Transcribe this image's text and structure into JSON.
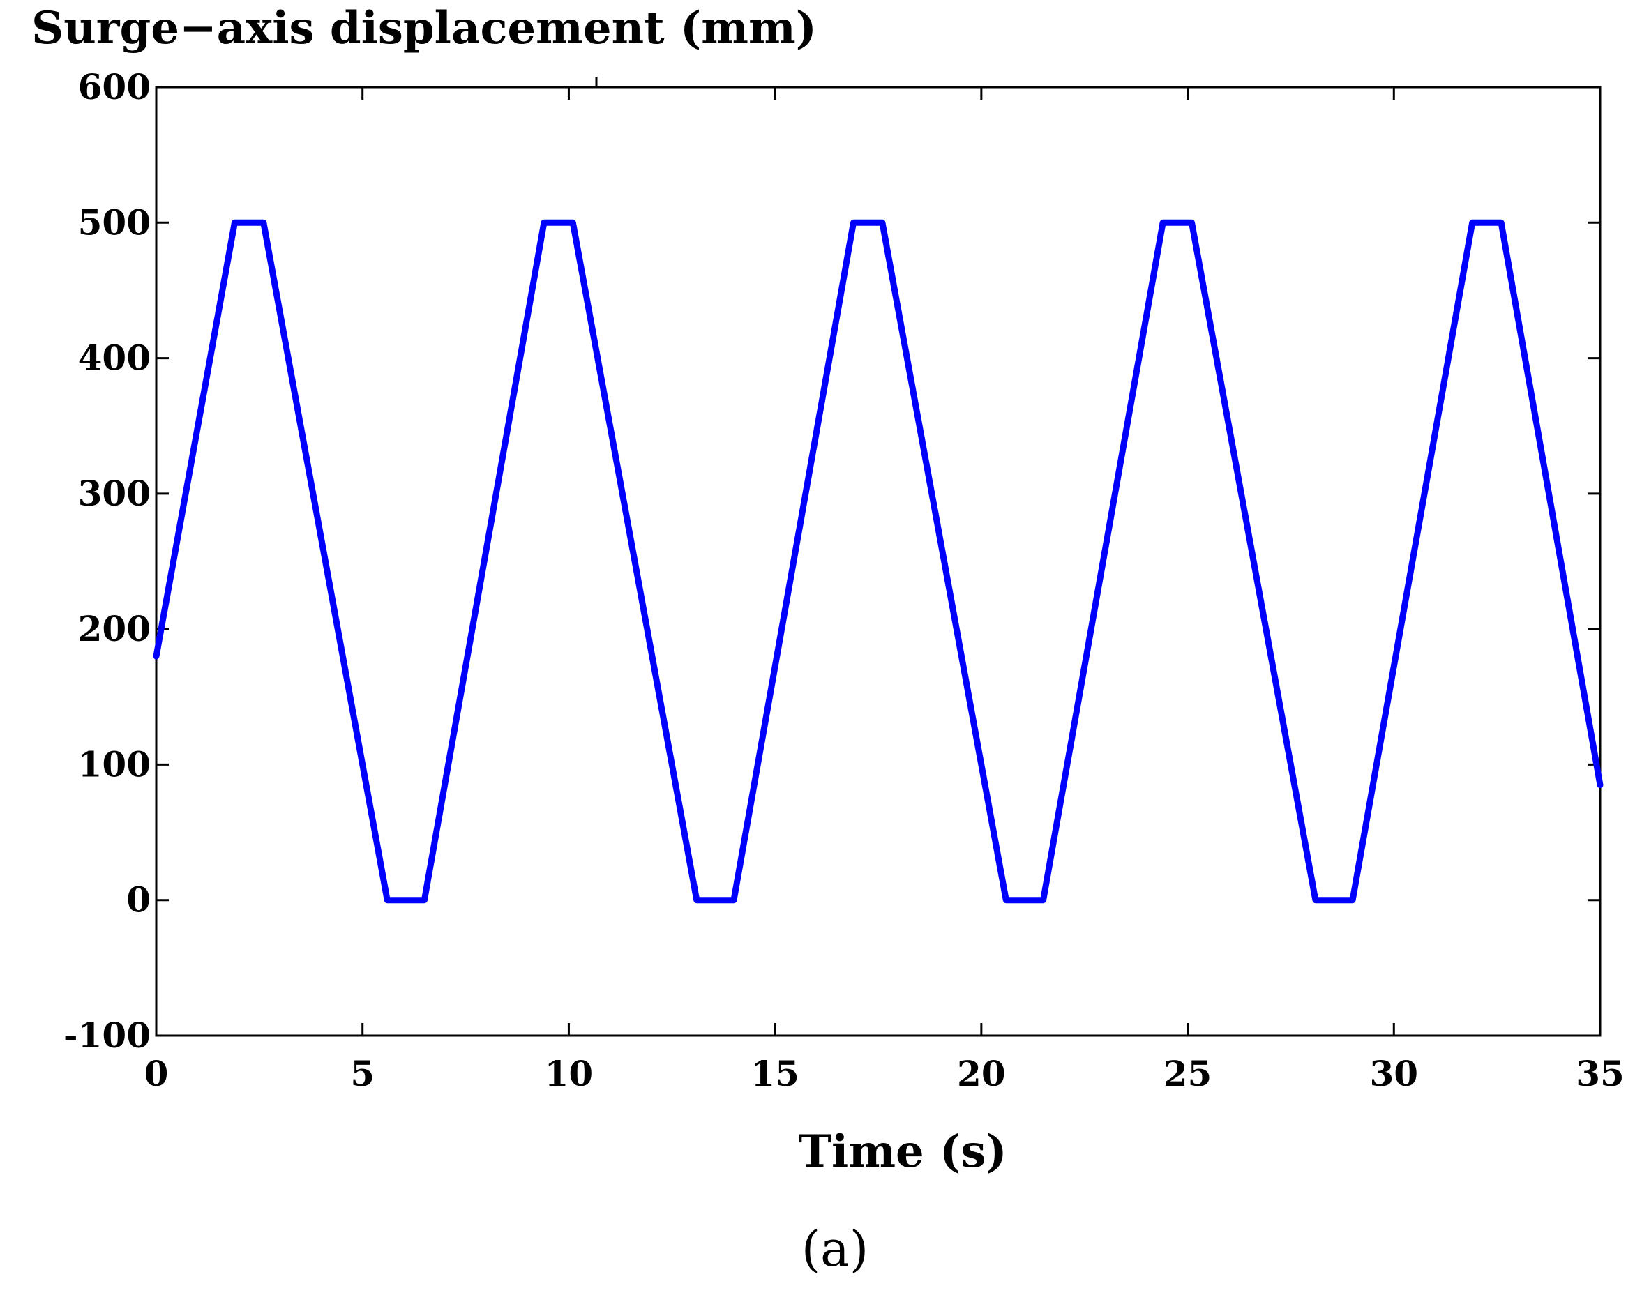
{
  "chart_data": {
    "type": "line",
    "title": "Surge−axis displacement (mm)",
    "xlabel": "Time (s)",
    "ylabel": "",
    "xlim": [
      0,
      35
    ],
    "ylim": [
      -100,
      600
    ],
    "xticks": [
      0,
      5,
      10,
      15,
      20,
      25,
      30,
      35
    ],
    "yticks": [
      -100,
      0,
      100,
      200,
      300,
      400,
      500,
      600
    ],
    "xtick_labels": [
      "0",
      "5",
      "10",
      "15",
      "20",
      "25",
      "30",
      "35"
    ],
    "ytick_labels": [
      "-100",
      "0",
      "100",
      "200",
      "300",
      "400",
      "500",
      "600"
    ],
    "grid": false,
    "legend": "none",
    "series": [
      {
        "color": "#0000ff",
        "x": [
          0,
          1.9,
          2.6,
          5.6,
          6.5,
          9.4,
          10.1,
          13.1,
          14.0,
          16.9,
          17.6,
          20.6,
          21.5,
          24.4,
          25.1,
          28.1,
          29.0,
          31.9,
          32.6,
          35.0
        ],
        "y": [
          180,
          500,
          500,
          0,
          0,
          500,
          500,
          0,
          0,
          500,
          500,
          0,
          0,
          500,
          500,
          0,
          0,
          500,
          500,
          85
        ]
      }
    ]
  },
  "caption": "(a)"
}
